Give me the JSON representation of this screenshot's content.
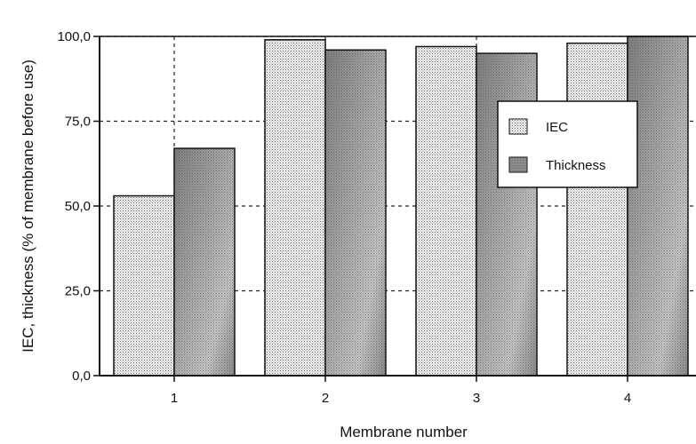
{
  "chart_data": {
    "type": "bar",
    "xlabel": "Membrane number",
    "ylabel": "IEC, thickness (% of membrane before use)",
    "categories": [
      "1",
      "2",
      "3",
      "4"
    ],
    "ylim": [
      0,
      100
    ],
    "yticks": [
      "0,0",
      "25,0",
      "50,0",
      "75,0",
      "100,0"
    ],
    "grid": "dashed at y ticks and x categories",
    "legend_position": "upper-right",
    "series": [
      {
        "name": "IEC",
        "values": [
          53,
          99,
          97,
          98
        ],
        "pattern": "light dotted",
        "color": "#d8d8d8"
      },
      {
        "name": "Thickness",
        "values": [
          67,
          96,
          95,
          100
        ],
        "pattern": "dark dotted gradient",
        "color": "#9a9a9a"
      }
    ]
  }
}
